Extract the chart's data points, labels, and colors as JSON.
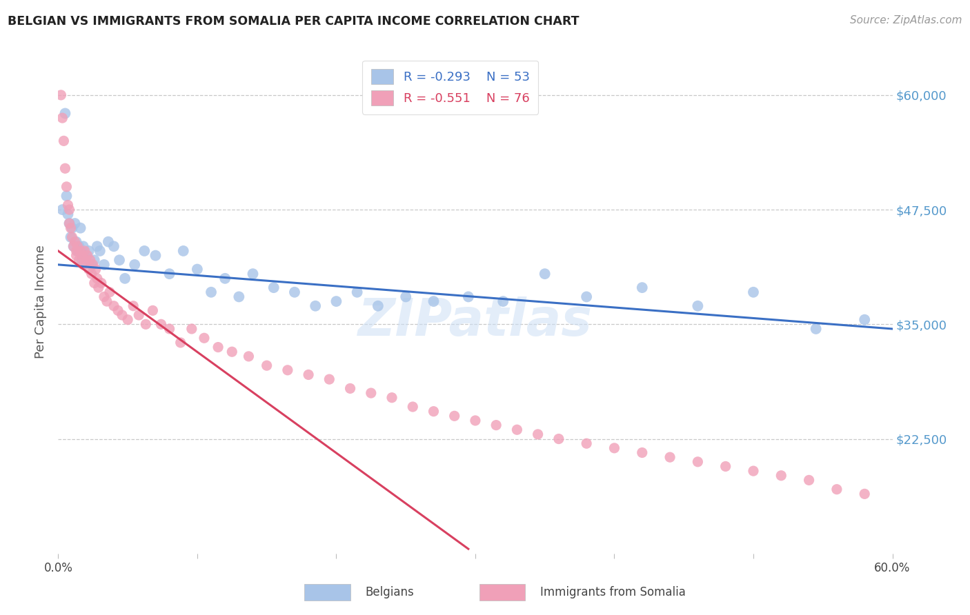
{
  "title": "BELGIAN VS IMMIGRANTS FROM SOMALIA PER CAPITA INCOME CORRELATION CHART",
  "source": "Source: ZipAtlas.com",
  "ylabel": "Per Capita Income",
  "ytick_labels": [
    "$60,000",
    "$47,500",
    "$35,000",
    "$22,500"
  ],
  "ytick_values": [
    60000,
    47500,
    35000,
    22500
  ],
  "ylim": [
    10000,
    65000
  ],
  "xlim": [
    0.0,
    0.6
  ],
  "legend_blue_r": "R = -0.293",
  "legend_blue_n": "N = 53",
  "legend_pink_r": "R = -0.551",
  "legend_pink_n": "N = 76",
  "legend_label_blue": "Belgians",
  "legend_label_pink": "Immigrants from Somalia",
  "bg_color": "#ffffff",
  "grid_color": "#c8c8c8",
  "blue_scatter_color": "#a8c4e8",
  "pink_scatter_color": "#f0a0b8",
  "blue_line_color": "#3a6fc4",
  "pink_line_color": "#d84060",
  "title_color": "#222222",
  "ylabel_color": "#555555",
  "ytick_color": "#5599cc",
  "xtick_color": "#444444",
  "watermark": "ZIPatlas",
  "blue_x": [
    0.003,
    0.005,
    0.006,
    0.007,
    0.008,
    0.009,
    0.01,
    0.011,
    0.012,
    0.013,
    0.014,
    0.015,
    0.016,
    0.017,
    0.018,
    0.02,
    0.022,
    0.024,
    0.026,
    0.028,
    0.03,
    0.033,
    0.036,
    0.04,
    0.044,
    0.048,
    0.055,
    0.062,
    0.07,
    0.08,
    0.09,
    0.1,
    0.11,
    0.12,
    0.13,
    0.14,
    0.155,
    0.17,
    0.185,
    0.2,
    0.215,
    0.23,
    0.25,
    0.27,
    0.295,
    0.32,
    0.35,
    0.38,
    0.42,
    0.46,
    0.5,
    0.545,
    0.58
  ],
  "blue_y": [
    47500,
    58000,
    49000,
    47000,
    46000,
    44500,
    45500,
    43500,
    46000,
    44000,
    43000,
    43500,
    45500,
    42000,
    43500,
    42500,
    43000,
    41500,
    42000,
    43500,
    43000,
    41500,
    44000,
    43500,
    42000,
    40000,
    41500,
    43000,
    42500,
    40500,
    43000,
    41000,
    38500,
    40000,
    38000,
    40500,
    39000,
    38500,
    37000,
    37500,
    38500,
    37000,
    38000,
    37500,
    38000,
    37500,
    40500,
    38000,
    39000,
    37000,
    38500,
    34500,
    35500
  ],
  "pink_x": [
    0.002,
    0.003,
    0.004,
    0.005,
    0.006,
    0.007,
    0.008,
    0.008,
    0.009,
    0.01,
    0.011,
    0.012,
    0.013,
    0.013,
    0.014,
    0.015,
    0.016,
    0.017,
    0.018,
    0.019,
    0.02,
    0.021,
    0.022,
    0.023,
    0.024,
    0.025,
    0.026,
    0.027,
    0.028,
    0.029,
    0.031,
    0.033,
    0.035,
    0.037,
    0.04,
    0.043,
    0.046,
    0.05,
    0.054,
    0.058,
    0.063,
    0.068,
    0.074,
    0.08,
    0.088,
    0.096,
    0.105,
    0.115,
    0.125,
    0.137,
    0.15,
    0.165,
    0.18,
    0.195,
    0.21,
    0.225,
    0.24,
    0.255,
    0.27,
    0.285,
    0.3,
    0.315,
    0.33,
    0.345,
    0.36,
    0.38,
    0.4,
    0.42,
    0.44,
    0.46,
    0.48,
    0.5,
    0.52,
    0.54,
    0.56,
    0.58
  ],
  "pink_y": [
    60000,
    57500,
    55000,
    52000,
    50000,
    48000,
    47500,
    46000,
    45500,
    44500,
    43500,
    44000,
    43000,
    42500,
    43500,
    42000,
    43000,
    42500,
    41500,
    43000,
    42000,
    42500,
    41000,
    42000,
    40500,
    41500,
    39500,
    41000,
    40000,
    39000,
    39500,
    38000,
    37500,
    38500,
    37000,
    36500,
    36000,
    35500,
    37000,
    36000,
    35000,
    36500,
    35000,
    34500,
    33000,
    34500,
    33500,
    32500,
    32000,
    31500,
    30500,
    30000,
    29500,
    29000,
    28000,
    27500,
    27000,
    26000,
    25500,
    25000,
    24500,
    24000,
    23500,
    23000,
    22500,
    22000,
    21500,
    21000,
    20500,
    20000,
    19500,
    19000,
    18500,
    18000,
    17000,
    16500
  ]
}
